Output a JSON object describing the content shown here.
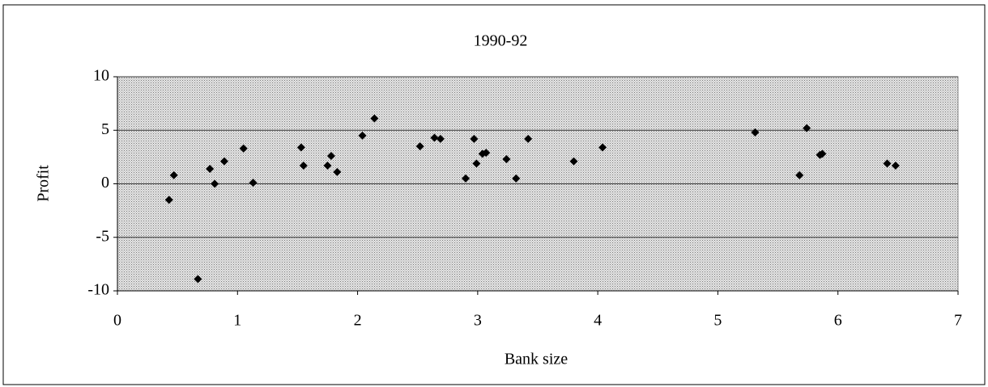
{
  "chart_data": {
    "type": "scatter",
    "title": "1990-92",
    "x_label": "Bank size",
    "y_label": "Profit",
    "color": "#000000",
    "x": [
      0.43,
      0.47,
      0.67,
      0.77,
      0.81,
      0.89,
      1.05,
      1.13,
      1.53,
      1.55,
      1.75,
      1.78,
      1.83,
      2.04,
      2.14,
      2.52,
      2.64,
      2.69,
      2.9,
      2.97,
      2.99,
      3.04,
      3.07,
      3.24,
      3.32,
      3.42,
      3.8,
      4.04,
      5.31,
      5.68,
      5.74,
      5.85,
      5.87,
      6.41,
      6.48
    ],
    "values": [
      -1.5,
      0.8,
      -8.9,
      1.4,
      0.0,
      2.1,
      3.3,
      0.1,
      3.4,
      1.7,
      1.7,
      2.6,
      1.1,
      4.5,
      6.1,
      3.5,
      4.3,
      4.2,
      0.5,
      4.2,
      1.9,
      2.8,
      2.9,
      2.3,
      0.5,
      4.2,
      2.1,
      3.4,
      4.8,
      0.8,
      5.2,
      2.7,
      2.8,
      1.9,
      1.7
    ],
    "xlim": [
      0,
      7
    ],
    "xticks": [
      0,
      1,
      2,
      3,
      4,
      5,
      6,
      7
    ],
    "ylim": [
      -10,
      10
    ],
    "yticks": [
      -10,
      -5,
      0,
      5,
      10
    ],
    "grid": true
  }
}
